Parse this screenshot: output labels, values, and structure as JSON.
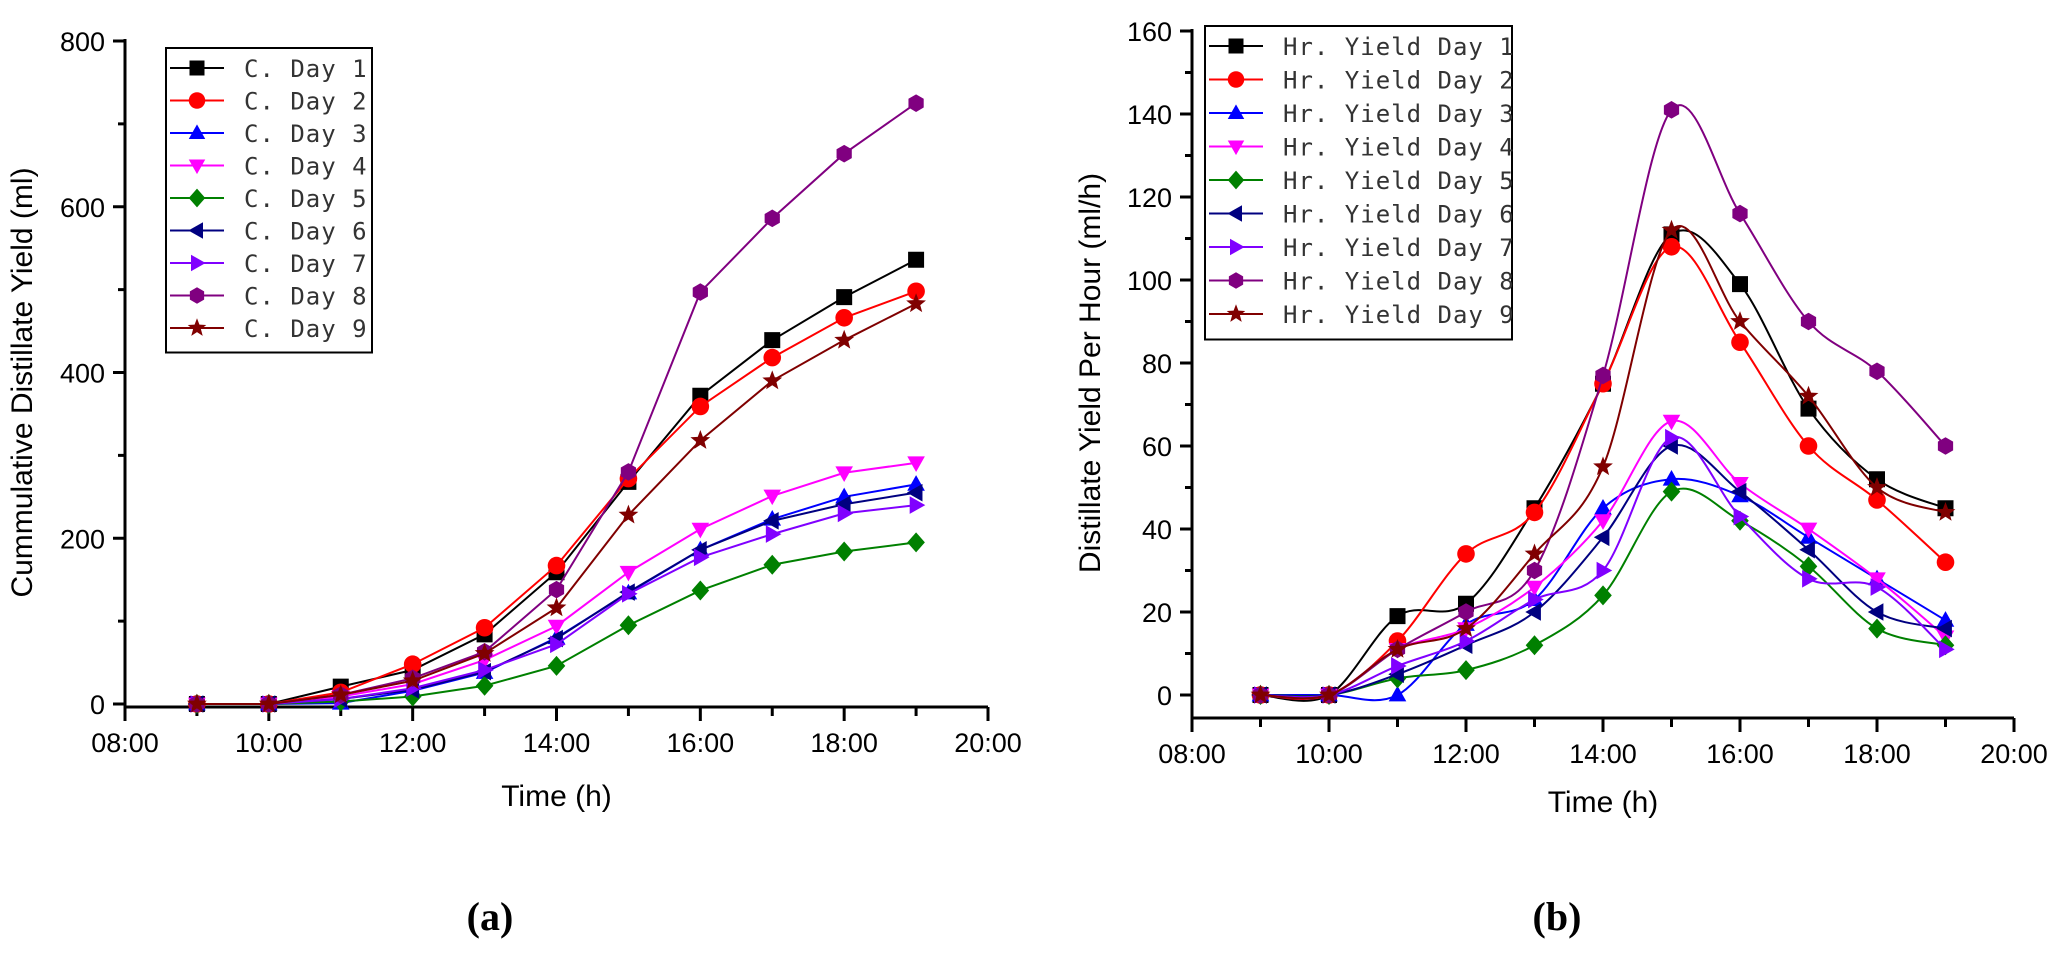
{
  "chart_data": [
    {
      "id": "a",
      "type": "line",
      "panel_label": "(a)",
      "title": "",
      "xlabel": "Time (h)",
      "ylabel": "Cummulative Distillate Yield (ml)",
      "x": [
        "09:00",
        "10:00",
        "11:00",
        "12:00",
        "13:00",
        "14:00",
        "15:00",
        "16:00",
        "17:00",
        "18:00",
        "19:00"
      ],
      "x_hours": [
        9,
        10,
        11,
        12,
        13,
        14,
        15,
        16,
        17,
        18,
        19
      ],
      "xlim": [
        8,
        20
      ],
      "xticks": [
        8,
        10,
        12,
        14,
        16,
        18,
        20
      ],
      "xtick_labels": [
        "08:00",
        "10:00",
        "12:00",
        "14:00",
        "16:00",
        "18:00",
        "20:00"
      ],
      "ylim": [
        0,
        800
      ],
      "yticks": [
        0,
        200,
        400,
        600,
        800
      ],
      "ytick_labels": [
        "0",
        "200",
        "400",
        "600",
        "800"
      ],
      "grid": false,
      "smooth": false,
      "legend_position": "top-left",
      "series": [
        {
          "name": "C. Day 1",
          "color": "#000000",
          "marker": "square",
          "values": [
            0,
            0,
            21,
            41,
            84,
            159,
            268,
            372,
            439,
            491,
            536
          ]
        },
        {
          "name": "C. Day 2",
          "color": "#ff0000",
          "marker": "circle",
          "values": [
            0,
            0,
            14,
            48,
            92,
            167,
            272,
            359,
            418,
            466,
            498
          ]
        },
        {
          "name": "C. Day 3",
          "color": "#0000ff",
          "marker": "triangle-up",
          "values": [
            0,
            0,
            1,
            16,
            38,
            80,
            134,
            186,
            223,
            250,
            265
          ]
        },
        {
          "name": "C. Day 4",
          "color": "#ff00ff",
          "marker": "triangle-down",
          "values": [
            0,
            0,
            9,
            24,
            53,
            94,
            159,
            211,
            251,
            279,
            291
          ]
        },
        {
          "name": "C. Day 5",
          "color": "#008000",
          "marker": "diamond",
          "values": [
            0,
            0,
            3,
            9,
            22,
            46,
            95,
            137,
            168,
            184,
            195
          ]
        },
        {
          "name": "C. Day 6",
          "color": "#000080",
          "marker": "triangle-left",
          "values": [
            0,
            0,
            6,
            17,
            39,
            79,
            135,
            186,
            221,
            241,
            255
          ]
        },
        {
          "name": "C. Day 7",
          "color": "#8000ff",
          "marker": "triangle-right",
          "values": [
            0,
            0,
            6,
            19,
            41,
            72,
            133,
            177,
            205,
            230,
            240
          ]
        },
        {
          "name": "C. Day 8",
          "color": "#800080",
          "marker": "hexagon",
          "values": [
            0,
            0,
            11,
            31,
            63,
            138,
            280,
            497,
            586,
            664,
            725
          ]
        },
        {
          "name": "C. Day 9",
          "color": "#800000",
          "marker": "star",
          "values": [
            0,
            0,
            11,
            28,
            61,
            116,
            228,
            318,
            390,
            439,
            483
          ]
        }
      ]
    },
    {
      "id": "b",
      "type": "line",
      "panel_label": "(b)",
      "title": "",
      "xlabel": "Time (h)",
      "ylabel": "Distillate Yield Per Hour (ml/h)",
      "x": [
        "09:00",
        "10:00",
        "11:00",
        "12:00",
        "13:00",
        "14:00",
        "15:00",
        "16:00",
        "17:00",
        "18:00",
        "19:00"
      ],
      "x_hours": [
        9,
        10,
        11,
        12,
        13,
        14,
        15,
        16,
        17,
        18,
        19
      ],
      "xlim": [
        8,
        20
      ],
      "xticks": [
        8,
        10,
        12,
        14,
        16,
        18,
        20
      ],
      "xtick_labels": [
        "08:00",
        "10:00",
        "12:00",
        "14:00",
        "16:00",
        "18:00",
        "20:00"
      ],
      "ylim": [
        -5,
        160
      ],
      "yticks": [
        0,
        20,
        40,
        60,
        80,
        100,
        120,
        140,
        160
      ],
      "ytick_labels": [
        "0",
        "20",
        "40",
        "60",
        "80",
        "100",
        "120",
        "140",
        "160"
      ],
      "grid": false,
      "smooth": true,
      "legend_position": "top-left",
      "series": [
        {
          "name": "Hr. Yield Day 1",
          "color": "#000000",
          "marker": "square",
          "values": [
            0,
            0,
            19,
            22,
            45,
            75,
            111,
            99,
            69,
            52,
            45
          ]
        },
        {
          "name": "Hr. Yield Day 2",
          "color": "#ff0000",
          "marker": "circle",
          "values": [
            0,
            0,
            13,
            34,
            44,
            75,
            108,
            85,
            60,
            47,
            32
          ]
        },
        {
          "name": "Hr. Yield Day 3",
          "color": "#0000ff",
          "marker": "triangle-up",
          "values": [
            0,
            0,
            0,
            17,
            23,
            45,
            52,
            48,
            38,
            28,
            18
          ]
        },
        {
          "name": "Hr. Yield Day 4",
          "color": "#ff00ff",
          "marker": "triangle-down",
          "values": [
            0,
            0,
            11,
            16,
            26,
            42,
            66,
            51,
            40,
            28,
            14
          ]
        },
        {
          "name": "Hr. Yield Day 5",
          "color": "#008000",
          "marker": "diamond",
          "values": [
            0,
            0,
            4,
            6,
            12,
            24,
            49,
            42,
            31,
            16,
            12
          ]
        },
        {
          "name": "Hr. Yield Day 6",
          "color": "#000080",
          "marker": "triangle-left",
          "values": [
            0,
            0,
            5,
            12,
            20,
            38,
            60,
            49,
            35,
            20,
            16
          ]
        },
        {
          "name": "Hr. Yield Day 7",
          "color": "#8000ff",
          "marker": "triangle-right",
          "values": [
            0,
            0,
            7,
            13,
            23,
            30,
            62,
            43,
            28,
            26,
            11
          ]
        },
        {
          "name": "Hr. Yield Day 8",
          "color": "#800080",
          "marker": "hexagon",
          "values": [
            0,
            0,
            11,
            20,
            30,
            77,
            141,
            116,
            90,
            78,
            60
          ]
        },
        {
          "name": "Hr. Yield Day 9",
          "color": "#800000",
          "marker": "star",
          "values": [
            0,
            0,
            11,
            16,
            34,
            55,
            112,
            90,
            72,
            50,
            44
          ]
        }
      ]
    }
  ]
}
